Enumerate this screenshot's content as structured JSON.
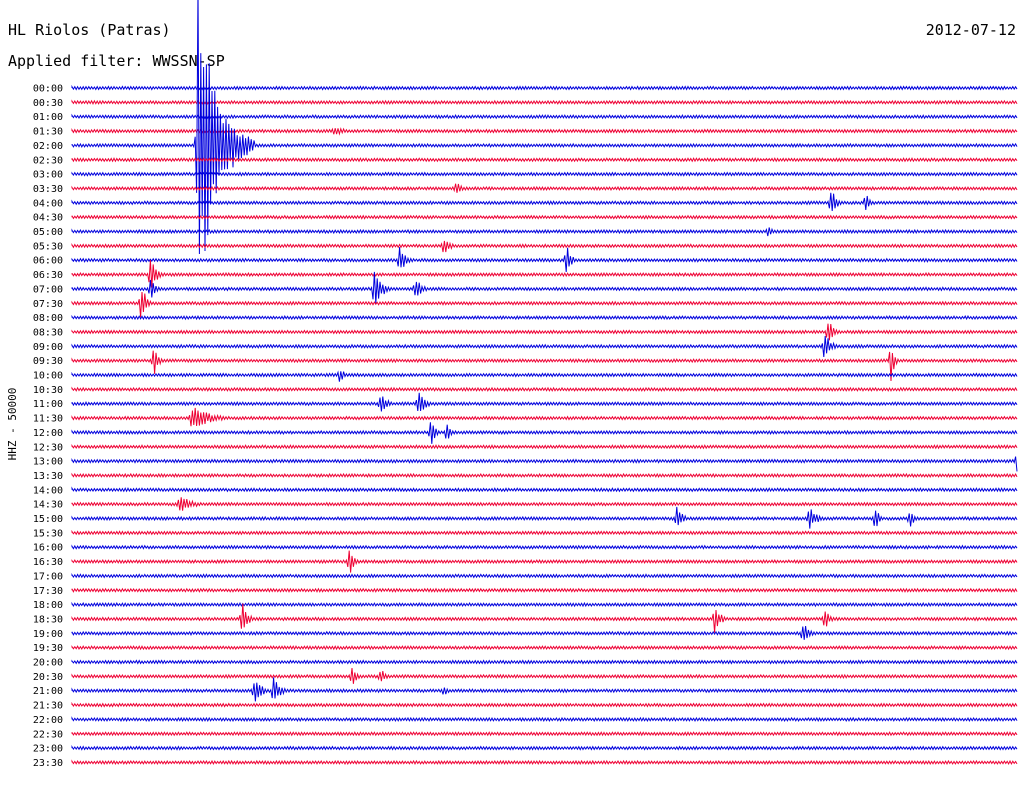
{
  "chart_data": {
    "type": "line",
    "title": "HL Riolos (Patras)",
    "subtitle": "Applied filter: WWSSN-SP",
    "date": "2012-07-12",
    "ylabel": "HHZ - 50000",
    "colors": {
      "odd": "#0000dd",
      "even": "#ee0033",
      "text": "#000000"
    },
    "rows": [
      "00:00",
      "00:30",
      "01:00",
      "01:30",
      "02:00",
      "02:30",
      "03:00",
      "03:30",
      "04:00",
      "04:30",
      "05:00",
      "05:30",
      "06:00",
      "06:30",
      "07:00",
      "07:30",
      "08:00",
      "08:30",
      "09:00",
      "09:30",
      "10:00",
      "10:30",
      "11:00",
      "11:30",
      "12:00",
      "12:30",
      "13:00",
      "13:30",
      "14:00",
      "14:30",
      "15:00",
      "15:30",
      "16:00",
      "16:30",
      "17:00",
      "17:30",
      "18:00",
      "18:30",
      "19:00",
      "19:30",
      "20:00",
      "20:30",
      "21:00",
      "21:30",
      "22:00",
      "22:30",
      "23:00",
      "23:30"
    ],
    "events": [
      {
        "row": 4,
        "min": 4.0,
        "amp": 160,
        "dur": 1.8
      },
      {
        "row": 3,
        "min": 8.3,
        "amp": 5,
        "dur": 1.2
      },
      {
        "row": 7,
        "min": 12.2,
        "amp": 7,
        "dur": 0.6
      },
      {
        "row": 8,
        "min": 24.1,
        "amp": 16,
        "dur": 0.5
      },
      {
        "row": 8,
        "min": 25.2,
        "amp": 10,
        "dur": 0.4
      },
      {
        "row": 10,
        "min": 22.1,
        "amp": 6,
        "dur": 0.4
      },
      {
        "row": 11,
        "min": 11.8,
        "amp": 10,
        "dur": 0.6
      },
      {
        "row": 12,
        "min": 10.4,
        "amp": 14,
        "dur": 0.6
      },
      {
        "row": 12,
        "min": 15.7,
        "amp": 18,
        "dur": 0.4
      },
      {
        "row": 13,
        "min": 2.5,
        "amp": 22,
        "dur": 0.5
      },
      {
        "row": 14,
        "min": 2.5,
        "amp": 14,
        "dur": 0.4
      },
      {
        "row": 14,
        "min": 9.6,
        "amp": 22,
        "dur": 0.7
      },
      {
        "row": 14,
        "min": 10.9,
        "amp": 12,
        "dur": 0.6
      },
      {
        "row": 15,
        "min": 2.2,
        "amp": 24,
        "dur": 0.4
      },
      {
        "row": 17,
        "min": 24.0,
        "amp": 14,
        "dur": 0.5
      },
      {
        "row": 18,
        "min": 23.9,
        "amp": 18,
        "dur": 0.5
      },
      {
        "row": 19,
        "min": 2.6,
        "amp": 18,
        "dur": 0.4
      },
      {
        "row": 19,
        "min": 26.0,
        "amp": 22,
        "dur": 0.3
      },
      {
        "row": 20,
        "min": 8.5,
        "amp": 8,
        "dur": 0.5
      },
      {
        "row": 22,
        "min": 9.8,
        "amp": 14,
        "dur": 0.5
      },
      {
        "row": 22,
        "min": 11.0,
        "amp": 14,
        "dur": 0.6
      },
      {
        "row": 23,
        "min": 3.8,
        "amp": 14,
        "dur": 1.6
      },
      {
        "row": 24,
        "min": 11.4,
        "amp": 14,
        "dur": 0.4
      },
      {
        "row": 24,
        "min": 11.9,
        "amp": 10,
        "dur": 0.4
      },
      {
        "row": 26,
        "min": 30.0,
        "amp": 14,
        "dur": 0.4
      },
      {
        "row": 29,
        "min": 3.4,
        "amp": 10,
        "dur": 1.2
      },
      {
        "row": 30,
        "min": 19.2,
        "amp": 14,
        "dur": 0.5
      },
      {
        "row": 30,
        "min": 23.4,
        "amp": 12,
        "dur": 0.8
      },
      {
        "row": 30,
        "min": 25.5,
        "amp": 12,
        "dur": 0.4
      },
      {
        "row": 30,
        "min": 26.6,
        "amp": 10,
        "dur": 0.4
      },
      {
        "row": 33,
        "min": 8.8,
        "amp": 18,
        "dur": 0.4
      },
      {
        "row": 37,
        "min": 5.4,
        "amp": 18,
        "dur": 0.5
      },
      {
        "row": 37,
        "min": 20.4,
        "amp": 14,
        "dur": 0.6
      },
      {
        "row": 37,
        "min": 23.9,
        "amp": 12,
        "dur": 0.4
      },
      {
        "row": 38,
        "min": 23.2,
        "amp": 12,
        "dur": 0.6
      },
      {
        "row": 41,
        "min": 8.9,
        "amp": 12,
        "dur": 0.4
      },
      {
        "row": 41,
        "min": 9.8,
        "amp": 10,
        "dur": 0.4
      },
      {
        "row": 42,
        "min": 5.8,
        "amp": 16,
        "dur": 0.6
      },
      {
        "row": 42,
        "min": 6.4,
        "amp": 16,
        "dur": 0.6
      },
      {
        "row": 42,
        "min": 11.8,
        "amp": 6,
        "dur": 0.4
      }
    ]
  }
}
